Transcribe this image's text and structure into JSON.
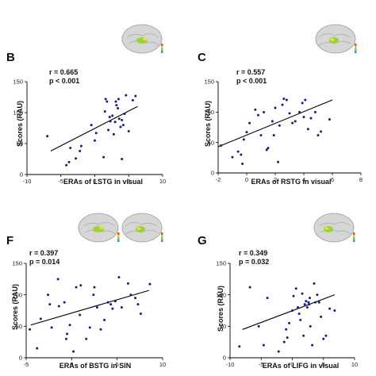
{
  "panels": [
    {
      "letter": "B",
      "r": "r = 0.665",
      "p": "p < 0.001",
      "ylabel": "Scores (RAU)",
      "xlabel": "ERAs of LSTG in visual"
    },
    {
      "letter": "C",
      "r": "r = 0.557",
      "p": "p < 0.001",
      "ylabel": "Scores (RAU)",
      "xlabel": "ERAs of RSTG in visual"
    },
    {
      "letter": "F",
      "r": "r = 0.397",
      "p": "p = 0.014",
      "ylabel": "Scores (RAU)",
      "xlabel": "ERAs of BSTG in SIN"
    },
    {
      "letter": "G",
      "r": "r = 0.349",
      "p": "p = 0.032",
      "ylabel": "Scores (RAU)",
      "xlabel": "ERAs of LIFG in visual"
    }
  ],
  "colors": {
    "points": "#1a1a7a",
    "line": "#000000",
    "brain": "#d9d9d9",
    "activation": "#9bd43a"
  },
  "icons": [
    "brain-left-icon",
    "brain-right-icon",
    "brain-left-icon",
    "brain-right-icon",
    "brain-left-icon"
  ],
  "chart_data": [
    {
      "type": "scatter",
      "xlabel": "ERAs of LSTG in visual",
      "ylabel": "Scores (RAU)",
      "xlim": [
        -10,
        10
      ],
      "ylim": [
        0,
        150
      ],
      "xticks": [
        -10,
        -5,
        0,
        5,
        10
      ],
      "yticks": [
        0,
        50,
        100,
        150
      ],
      "fit": [
        [
          -6.5,
          38
        ],
        [
          6.3,
          110
        ]
      ],
      "points": [
        [
          -7,
          62
        ],
        [
          -4.2,
          15
        ],
        [
          -3.8,
          20
        ],
        [
          -3.6,
          43
        ],
        [
          -2.8,
          26
        ],
        [
          -2.2,
          38
        ],
        [
          -2.0,
          46
        ],
        [
          -0.5,
          80
        ],
        [
          0,
          55
        ],
        [
          0.2,
          67
        ],
        [
          1.3,
          28
        ],
        [
          1.5,
          102
        ],
        [
          1.6,
          122
        ],
        [
          1.8,
          118
        ],
        [
          2.0,
          72
        ],
        [
          2.2,
          93
        ],
        [
          2.3,
          86
        ],
        [
          2.6,
          95
        ],
        [
          2.8,
          65
        ],
        [
          3.0,
          85
        ],
        [
          3.1,
          118
        ],
        [
          3.2,
          112
        ],
        [
          3.4,
          107
        ],
        [
          3.5,
          122
        ],
        [
          3.6,
          90
        ],
        [
          3.8,
          77
        ],
        [
          4.0,
          88
        ],
        [
          4.2,
          80
        ],
        [
          4.4,
          98
        ],
        [
          4.0,
          25
        ],
        [
          4.6,
          128
        ],
        [
          5.0,
          70
        ],
        [
          5.6,
          120
        ],
        [
          6.0,
          127
        ]
      ],
      "grid": false
    },
    {
      "type": "scatter",
      "xlabel": "ERAs of RSTG in visual",
      "ylabel": "Scores (RAU)",
      "xlim": [
        -2,
        8
      ],
      "ylim": [
        0,
        150
      ],
      "xticks": [
        -2,
        0,
        2,
        4,
        6,
        8
      ],
      "yticks": [
        0,
        50,
        100,
        150
      ],
      "fit": [
        [
          -2,
          43
        ],
        [
          6,
          120
        ]
      ],
      "points": [
        [
          -1.8,
          45
        ],
        [
          -1,
          26
        ],
        [
          -0.6,
          35
        ],
        [
          -0.4,
          30
        ],
        [
          -0.3,
          15
        ],
        [
          -0.2,
          55
        ],
        [
          0,
          67
        ],
        [
          0.2,
          82
        ],
        [
          0.6,
          104
        ],
        [
          0.8,
          95
        ],
        [
          1.0,
          62
        ],
        [
          1.2,
          100
        ],
        [
          1.4,
          38
        ],
        [
          1.5,
          41
        ],
        [
          1.8,
          85
        ],
        [
          1.9,
          62
        ],
        [
          2.0,
          107
        ],
        [
          2.2,
          18
        ],
        [
          2.3,
          78
        ],
        [
          2.5,
          112
        ],
        [
          2.6,
          122
        ],
        [
          2.8,
          120
        ],
        [
          3.0,
          98
        ],
        [
          3.2,
          82
        ],
        [
          3.4,
          85
        ],
        [
          3.7,
          100
        ],
        [
          3.9,
          115
        ],
        [
          4.0,
          92
        ],
        [
          4.1,
          120
        ],
        [
          4.3,
          72
        ],
        [
          4.5,
          90
        ],
        [
          4.8,
          100
        ],
        [
          5.0,
          62
        ],
        [
          5.2,
          68
        ],
        [
          5.8,
          88
        ]
      ],
      "grid": false
    },
    {
      "type": "scatter",
      "xlabel": "ERAs of BSTG in SIN",
      "ylabel": "Scores (RAU)",
      "xlim": [
        -5,
        10
      ],
      "ylim": [
        0,
        150
      ],
      "xticks": [
        -5,
        0,
        5,
        10
      ],
      "yticks": [
        0,
        50,
        100,
        150
      ],
      "fit": [
        [
          -4.5,
          52
        ],
        [
          8.5,
          107
        ]
      ],
      "points": [
        [
          -4.6,
          45
        ],
        [
          -3.8,
          15
        ],
        [
          -3.4,
          62
        ],
        [
          -2.6,
          100
        ],
        [
          -2.4,
          85
        ],
        [
          -2.2,
          48
        ],
        [
          -1.5,
          125
        ],
        [
          -1.4,
          82
        ],
        [
          -0.8,
          88
        ],
        [
          -0.6,
          30
        ],
        [
          -0.5,
          38
        ],
        [
          -0.2,
          52
        ],
        [
          0.2,
          10
        ],
        [
          0.5,
          112
        ],
        [
          0.9,
          68
        ],
        [
          1.0,
          115
        ],
        [
          1.6,
          30
        ],
        [
          2.0,
          48
        ],
        [
          2.4,
          100
        ],
        [
          2.5,
          112
        ],
        [
          2.8,
          80
        ],
        [
          3.2,
          45
        ],
        [
          3.6,
          60
        ],
        [
          4.0,
          88
        ],
        [
          4.3,
          85
        ],
        [
          4.5,
          78
        ],
        [
          4.8,
          90
        ],
        [
          5.2,
          128
        ],
        [
          5.5,
          80
        ],
        [
          6.2,
          118
        ],
        [
          6.5,
          100
        ],
        [
          7.0,
          95
        ],
        [
          7.3,
          85
        ],
        [
          7.6,
          70
        ],
        [
          8.6,
          117
        ]
      ],
      "grid": false
    },
    {
      "type": "scatter",
      "xlabel": "ERAs of LIFG in visual",
      "ylabel": "Scores (RAU)",
      "xlim": [
        -10,
        10
      ],
      "ylim": [
        0,
        150
      ],
      "xticks": [
        -10,
        -5,
        0,
        5,
        10
      ],
      "yticks": [
        0,
        50,
        100,
        150
      ],
      "fit": [
        [
          -8,
          45
        ],
        [
          6.8,
          100
        ]
      ],
      "points": [
        [
          -8.5,
          18
        ],
        [
          -6.8,
          112
        ],
        [
          -5.4,
          50
        ],
        [
          -4.6,
          20
        ],
        [
          -4.0,
          95
        ],
        [
          -2.2,
          10
        ],
        [
          -1.3,
          25
        ],
        [
          -1.0,
          45
        ],
        [
          -0.8,
          32
        ],
        [
          -0.5,
          55
        ],
        [
          0,
          75
        ],
        [
          0.2,
          98
        ],
        [
          0.6,
          110
        ],
        [
          0.9,
          80
        ],
        [
          1.1,
          70
        ],
        [
          1.3,
          60
        ],
        [
          1.6,
          102
        ],
        [
          1.8,
          35
        ],
        [
          2.0,
          85
        ],
        [
          2.2,
          90
        ],
        [
          2.4,
          80
        ],
        [
          2.6,
          88
        ],
        [
          2.7,
          85
        ],
        [
          2.8,
          95
        ],
        [
          2.9,
          50
        ],
        [
          3.2,
          20
        ],
        [
          3.5,
          118
        ],
        [
          3.7,
          88
        ],
        [
          4.0,
          100
        ],
        [
          4.3,
          88
        ],
        [
          4.6,
          65
        ],
        [
          5.0,
          30
        ],
        [
          5.4,
          35
        ],
        [
          6.0,
          78
        ],
        [
          6.8,
          75
        ]
      ],
      "grid": false
    }
  ]
}
